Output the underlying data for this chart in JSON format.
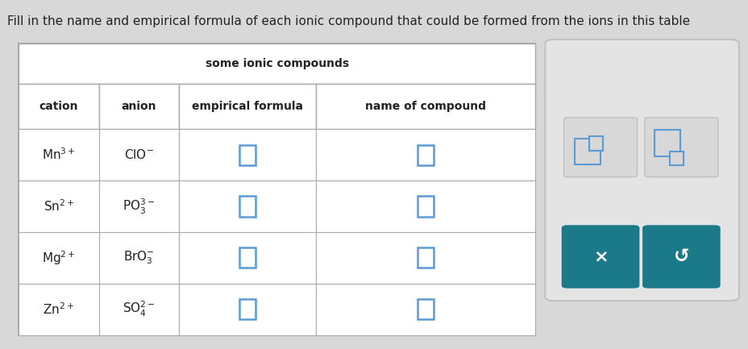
{
  "title": "Fill in the name and empirical formula of each ionic compound that could be formed from the ions in this table",
  "table_title": "some ionic compounds",
  "col_headers": [
    "cation",
    "anion",
    "empirical formula",
    "name of compound"
  ],
  "rows": [
    [
      "Mn$^{3+}$",
      "ClO$^{-}$"
    ],
    [
      "Sn$^{2+}$",
      "PO$_3^{3-}$"
    ],
    [
      "Mg$^{2+}$",
      "BrO$_3^{-}$"
    ],
    [
      "Zn$^{2+}$",
      "SO$_4^{2-}$"
    ]
  ],
  "bg_color": "#d8d8d8",
  "table_bg": "#ffffff",
  "cell_bg": "#ffffff",
  "border_color": "#aaaaaa",
  "text_color": "#222222",
  "input_box_color": "#5b9bd5",
  "side_panel_bg": "#e4e4e4",
  "side_panel_border": "#c0c0c0",
  "button_bg": "#1a7a8a",
  "button_text": "#ffffff",
  "icon_box_bg": "#d8d8d8",
  "icon_teal": "#5b9bd5",
  "title_fontsize": 11,
  "header_fontsize": 10,
  "cell_fontsize": 11
}
